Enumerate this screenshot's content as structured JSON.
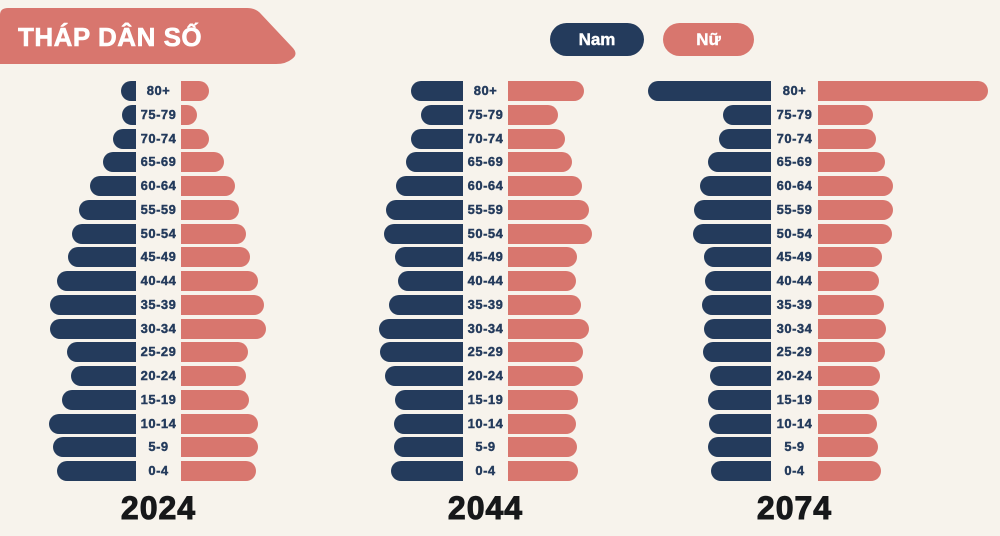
{
  "title": "THÁP DÂN SỐ",
  "legend": {
    "male_label": "Nam",
    "female_label": "Nữ"
  },
  "colors": {
    "male": "#243B5C",
    "female": "#D8766E",
    "background": "#F7F3EC",
    "title_text": "#FFFFFF",
    "age_label_text": "#243B5C",
    "year_text": "#17181A"
  },
  "chart_data": {
    "type": "bar",
    "subtype": "population-pyramid",
    "title": "THÁP DÂN SỐ",
    "legend_entries": [
      "Nam",
      "Nữ"
    ],
    "legend_position": "top-center",
    "grid": false,
    "unit": "relative bar length (px on 1000px-wide canvas, no numeric axis shown)",
    "age_groups": [
      "80+",
      "75-79",
      "70-74",
      "65-69",
      "60-64",
      "55-59",
      "50-54",
      "45-49",
      "40-44",
      "35-39",
      "30-34",
      "25-29",
      "20-24",
      "15-19",
      "10-14",
      "5-9",
      "0-4"
    ],
    "pyramids": [
      {
        "year": "2024",
        "male": [
          15,
          14,
          23,
          33,
          46,
          57,
          64,
          68,
          79,
          86,
          86,
          69,
          65,
          74,
          87,
          83,
          79
        ],
        "female": [
          28,
          16,
          28,
          43,
          54,
          58,
          65,
          69,
          77,
          83,
          85,
          67,
          65,
          68,
          77,
          77,
          75
        ]
      },
      {
        "year": "2044",
        "male": [
          52,
          42,
          52,
          57,
          67,
          77,
          79,
          68,
          65,
          74,
          84,
          83,
          78,
          68,
          69,
          69,
          72
        ],
        "female": [
          76,
          50,
          57,
          64,
          74,
          81,
          84,
          69,
          68,
          73,
          81,
          75,
          75,
          70,
          68,
          69,
          70
        ]
      },
      {
        "year": "2074",
        "male": [
          123,
          48,
          52,
          63,
          71,
          77,
          78,
          67,
          66,
          69,
          67,
          68,
          61,
          63,
          62,
          63,
          60
        ],
        "female": [
          170,
          55,
          58,
          67,
          75,
          75,
          74,
          64,
          61,
          66,
          68,
          67,
          62,
          61,
          59,
          60,
          63
        ]
      }
    ]
  }
}
